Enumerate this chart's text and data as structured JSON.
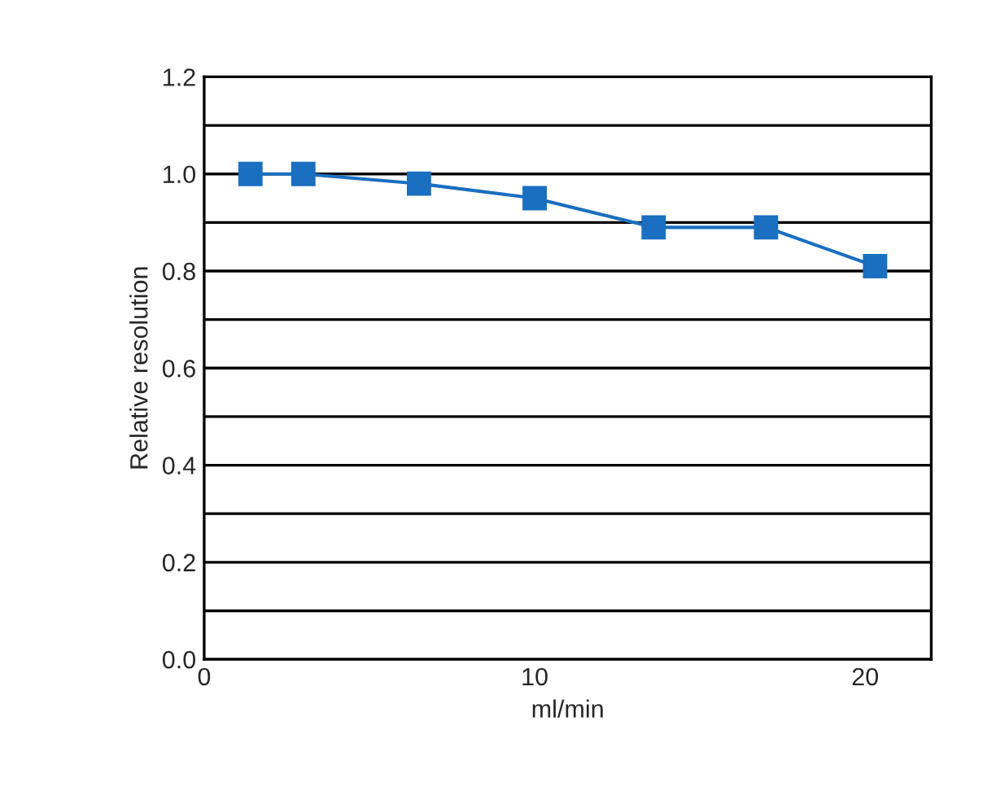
{
  "chart_data": {
    "type": "line",
    "xlabel": "ml/min",
    "ylabel": "Relative resolution",
    "x": [
      1.4,
      3.0,
      6.5,
      10,
      13.6,
      17,
      20.3
    ],
    "series": [
      {
        "color": "#1a6fc0",
        "values": [
          1.0,
          1.0,
          0.98,
          0.95,
          0.89,
          0.89,
          0.81
        ]
      }
    ],
    "xlim": [
      0,
      22
    ],
    "xticks": [
      0,
      10,
      20
    ],
    "ylim": [
      0,
      1.2
    ],
    "yticks": [
      {
        "value": 0,
        "label": "0.0"
      },
      {
        "value": 0.1,
        "label": null
      },
      {
        "value": 0.2,
        "label": "0.2"
      },
      {
        "value": 0.3,
        "label": null
      },
      {
        "value": 0.4,
        "label": "0.4"
      },
      {
        "value": 0.5,
        "label": null
      },
      {
        "value": 0.6,
        "label": "0.6"
      },
      {
        "value": 0.7,
        "label": null
      },
      {
        "value": 0.8,
        "label": "0.8"
      },
      {
        "value": 0.9,
        "label": null
      },
      {
        "value": 1.0,
        "label": "1.0"
      },
      {
        "value": 1.1,
        "label": null
      },
      {
        "value": 1.2,
        "label": "1.2"
      }
    ],
    "grid": "y",
    "marker": "square",
    "line_style": "solid"
  }
}
